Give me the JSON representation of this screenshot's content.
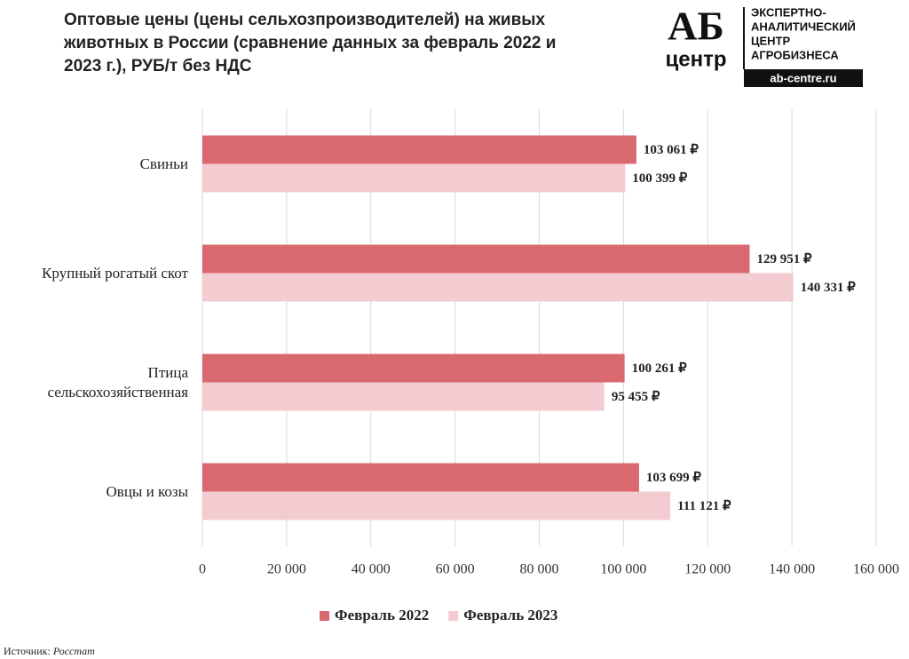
{
  "chart_data": {
    "type": "barh",
    "title": "Оптовые цены (цены сельхозпроизводителей) на живых животных в России (сравнение данных за февраль 2022 и 2023 г.), РУБ/т без НДС",
    "categories": [
      "Свиньи",
      "Крупный рогатый скот",
      "Птица сельскохозяйственная",
      "Овцы и козы"
    ],
    "series": [
      {
        "name": "Февраль 2022",
        "color": "#d9686f",
        "values": [
          103061,
          129951,
          100261,
          103699
        ],
        "value_labels": [
          "103 061 ₽",
          "129 951 ₽",
          "100 261 ₽",
          "103 699 ₽"
        ]
      },
      {
        "name": "Февраль 2023",
        "color": "#f2ccd0",
        "values": [
          100399,
          140331,
          95455,
          111121
        ],
        "value_labels": [
          "100 399 ₽",
          "140 331 ₽",
          "95 455 ₽",
          "111 121 ₽"
        ]
      }
    ],
    "xlim": [
      0,
      160000
    ],
    "xticks": [
      0,
      {
        "value": 20000,
        "label": "20 000"
      },
      {
        "value": 40000,
        "label": "40 000"
      },
      {
        "value": 60000,
        "label": "60 000"
      },
      {
        "value": 80000,
        "label": "80 000"
      },
      {
        "value": 100000,
        "label": "100 000"
      },
      {
        "value": 120000,
        "label": "120 000"
      },
      {
        "value": 140000,
        "label": "140 000"
      },
      {
        "value": 160000,
        "label": "160 000"
      }
    ],
    "grid": true,
    "legend": "bottom",
    "source_label": "Источник:",
    "source": "Росстат"
  },
  "logo": {
    "mark": "АБ",
    "mark_sub": "центр",
    "lines": [
      "ЭКСПЕРТНО-",
      "АНАЛИТИЧЕСКИЙ",
      "ЦЕНТР",
      "АГРОБИЗНЕСА"
    ],
    "url": "ab-centre.ru"
  }
}
